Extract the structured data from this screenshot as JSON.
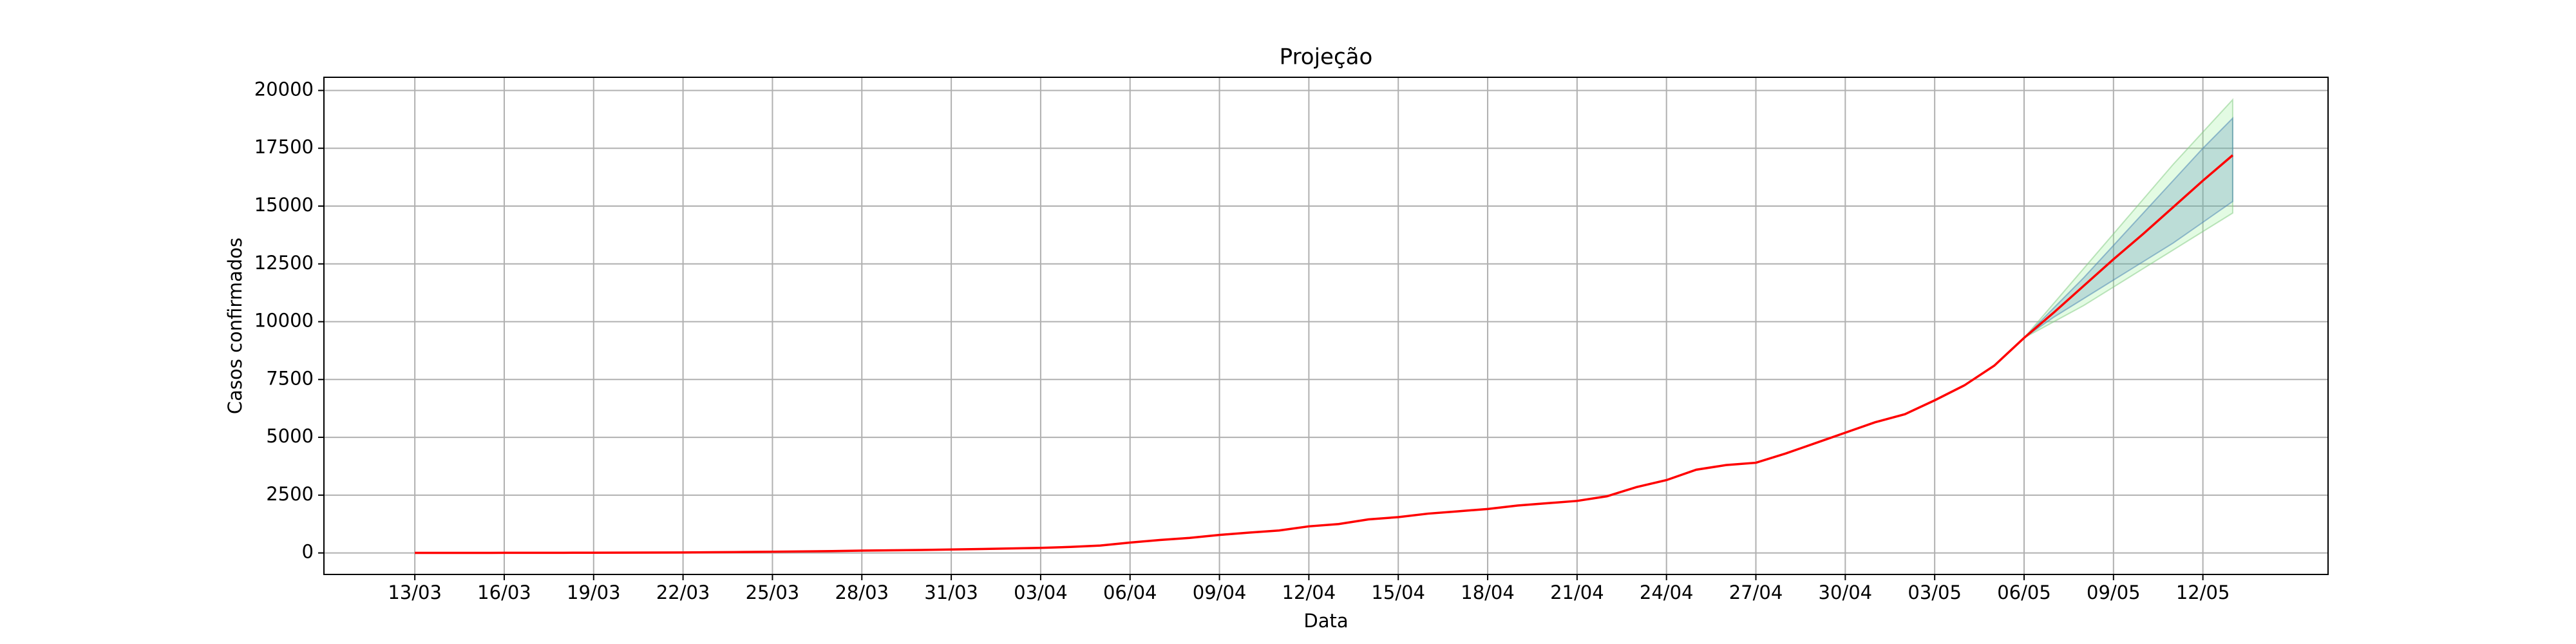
{
  "chart_data": {
    "type": "line",
    "title": "Projeção",
    "xlabel": "Data",
    "ylabel": "Casos confirmados",
    "categories": [
      "13/03",
      null,
      null,
      "16/03",
      null,
      null,
      "19/03",
      null,
      null,
      "22/03",
      null,
      null,
      "25/03",
      null,
      null,
      "28/03",
      null,
      null,
      "31/03",
      null,
      null,
      "03/04",
      null,
      null,
      "06/04",
      null,
      null,
      "09/04",
      null,
      null,
      "12/04",
      null,
      null,
      "15/04",
      null,
      null,
      "18/04",
      null,
      null,
      "21/04",
      null,
      null,
      "24/04",
      null,
      null,
      "27/04",
      null,
      null,
      "30/04",
      null,
      null,
      "03/05",
      null,
      null,
      "06/05",
      null,
      null,
      "09/05",
      null,
      null,
      "12/05",
      null
    ],
    "series": [
      {
        "color": "#ff0000",
        "values": [
          2,
          3,
          4,
          5,
          6,
          8,
          10,
          14,
          18,
          22,
          30,
          40,
          50,
          65,
          80,
          100,
          115,
          130,
          150,
          170,
          195,
          220,
          260,
          320,
          450,
          560,
          650,
          780,
          880,
          970,
          1150,
          1250,
          1450,
          1550,
          1700,
          1800,
          1900,
          2050,
          2150,
          2250,
          2450,
          2850,
          3150,
          3600,
          3800,
          3900,
          4300,
          4750,
          5200,
          5650,
          6000,
          6600,
          7250,
          8100,
          9300,
          10400,
          11550,
          12700,
          13800,
          14950,
          16100,
          17200
        ]
      }
    ],
    "bands": [
      {
        "color": "#90ee90",
        "edge": "#7fc97f",
        "opacity": 0.25,
        "lower": [
          null,
          null,
          null,
          null,
          null,
          null,
          null,
          null,
          null,
          null,
          null,
          null,
          null,
          null,
          null,
          null,
          null,
          null,
          null,
          null,
          null,
          null,
          null,
          null,
          null,
          null,
          null,
          null,
          null,
          null,
          null,
          null,
          null,
          null,
          null,
          null,
          null,
          null,
          null,
          null,
          null,
          null,
          null,
          null,
          null,
          null,
          null,
          null,
          null,
          null,
          null,
          null,
          null,
          null,
          9300,
          10000,
          10700,
          11500,
          12300,
          13100,
          13900,
          14700
        ],
        "upper": [
          null,
          null,
          null,
          null,
          null,
          null,
          null,
          null,
          null,
          null,
          null,
          null,
          null,
          null,
          null,
          null,
          null,
          null,
          null,
          null,
          null,
          null,
          null,
          null,
          null,
          null,
          null,
          null,
          null,
          null,
          null,
          null,
          null,
          null,
          null,
          null,
          null,
          null,
          null,
          null,
          null,
          null,
          null,
          null,
          null,
          null,
          null,
          null,
          null,
          null,
          null,
          null,
          null,
          null,
          9300,
          10800,
          12300,
          13800,
          15300,
          16800,
          18200,
          19600
        ]
      },
      {
        "color": "#4682b4",
        "edge": "#4682b4",
        "opacity": 0.25,
        "lower": [
          null,
          null,
          null,
          null,
          null,
          null,
          null,
          null,
          null,
          null,
          null,
          null,
          null,
          null,
          null,
          null,
          null,
          null,
          null,
          null,
          null,
          null,
          null,
          null,
          null,
          null,
          null,
          null,
          null,
          null,
          null,
          null,
          null,
          null,
          null,
          null,
          null,
          null,
          null,
          null,
          null,
          null,
          null,
          null,
          null,
          null,
          null,
          null,
          null,
          null,
          null,
          null,
          null,
          null,
          9300,
          10200,
          11000,
          11800,
          12600,
          13400,
          14300,
          15200
        ],
        "upper": [
          null,
          null,
          null,
          null,
          null,
          null,
          null,
          null,
          null,
          null,
          null,
          null,
          null,
          null,
          null,
          null,
          null,
          null,
          null,
          null,
          null,
          null,
          null,
          null,
          null,
          null,
          null,
          null,
          null,
          null,
          null,
          null,
          null,
          null,
          null,
          null,
          null,
          null,
          null,
          null,
          null,
          null,
          null,
          null,
          null,
          null,
          null,
          null,
          null,
          null,
          null,
          null,
          null,
          null,
          9300,
          10600,
          11900,
          13300,
          14700,
          16100,
          17500,
          18800
        ]
      }
    ],
    "ylim": [
      -930,
      20570
    ],
    "yticks": [
      0,
      2500,
      5000,
      7500,
      10000,
      12500,
      15000,
      17500,
      20000
    ],
    "grid": true
  }
}
